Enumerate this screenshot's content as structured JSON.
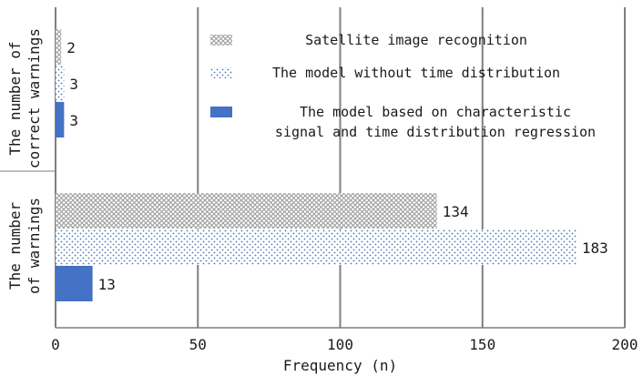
{
  "chart_data": {
    "type": "bar",
    "orientation": "horizontal",
    "xlabel": "Frequency (n)",
    "xlim": [
      0,
      200
    ],
    "xticks": [
      "0",
      "50",
      "100",
      "150",
      "200"
    ],
    "grid": true,
    "legend_position": "top-right",
    "groups": [
      {
        "name_lines": [
          "The number of",
          "correct warnings"
        ]
      },
      {
        "name_lines": [
          "The number",
          "of warnings"
        ]
      }
    ],
    "series": [
      {
        "name": "Satellite image recognition",
        "name_lines": [
          "Satellite image recognition"
        ],
        "pattern": "crosshatch",
        "color": "#9e9e9e",
        "values": [
          2,
          134
        ]
      },
      {
        "name": "The model without time distribution",
        "name_lines": [
          "The model without time distribution"
        ],
        "pattern": "dots",
        "color": "#4a78b8",
        "values": [
          3,
          183
        ]
      },
      {
        "name": "The model based on characteristic signal and time distribution regression",
        "name_lines": [
          "The model based on characteristic",
          "signal and time distribution regression"
        ],
        "pattern": "solid",
        "color": "#4472c4",
        "values": [
          3,
          13
        ]
      }
    ]
  }
}
